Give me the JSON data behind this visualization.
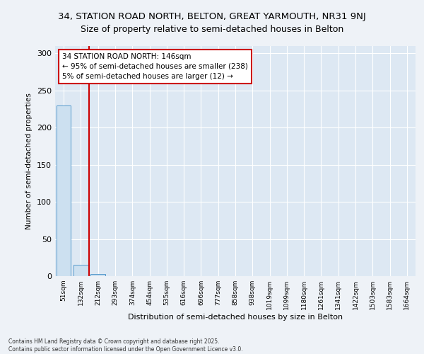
{
  "title_line1": "34, STATION ROAD NORTH, BELTON, GREAT YARMOUTH, NR31 9NJ",
  "title_line2": "Size of property relative to semi-detached houses in Belton",
  "xlabel": "Distribution of semi-detached houses by size in Belton",
  "ylabel": "Number of semi-detached properties",
  "categories": [
    "51sqm",
    "132sqm",
    "212sqm",
    "293sqm",
    "374sqm",
    "454sqm",
    "535sqm",
    "616sqm",
    "696sqm",
    "777sqm",
    "858sqm",
    "938sqm",
    "1019sqm",
    "1099sqm",
    "1180sqm",
    "1261sqm",
    "1341sqm",
    "1422sqm",
    "1503sqm",
    "1583sqm",
    "1664sqm"
  ],
  "values": [
    230,
    15,
    3,
    0,
    0,
    0,
    0,
    0,
    0,
    0,
    0,
    0,
    0,
    0,
    0,
    0,
    0,
    0,
    0,
    0,
    0
  ],
  "bar_color": "#cce0f0",
  "bar_edge_color": "#5599cc",
  "vline_x": 1.46,
  "vline_color": "#cc0000",
  "annotation_text": "34 STATION ROAD NORTH: 146sqm\n← 95% of semi-detached houses are smaller (238)\n5% of semi-detached houses are larger (12) →",
  "annotation_box_color": "#ffffff",
  "annotation_box_edge": "#cc0000",
  "ylim": [
    0,
    310
  ],
  "yticks": [
    0,
    50,
    100,
    150,
    200,
    250,
    300
  ],
  "footer_text": "Contains HM Land Registry data © Crown copyright and database right 2025.\nContains public sector information licensed under the Open Government Licence v3.0.",
  "bg_color": "#eef2f7",
  "plot_bg_color": "#dde8f3",
  "title_fontsize": 9.5,
  "subtitle_fontsize": 9
}
